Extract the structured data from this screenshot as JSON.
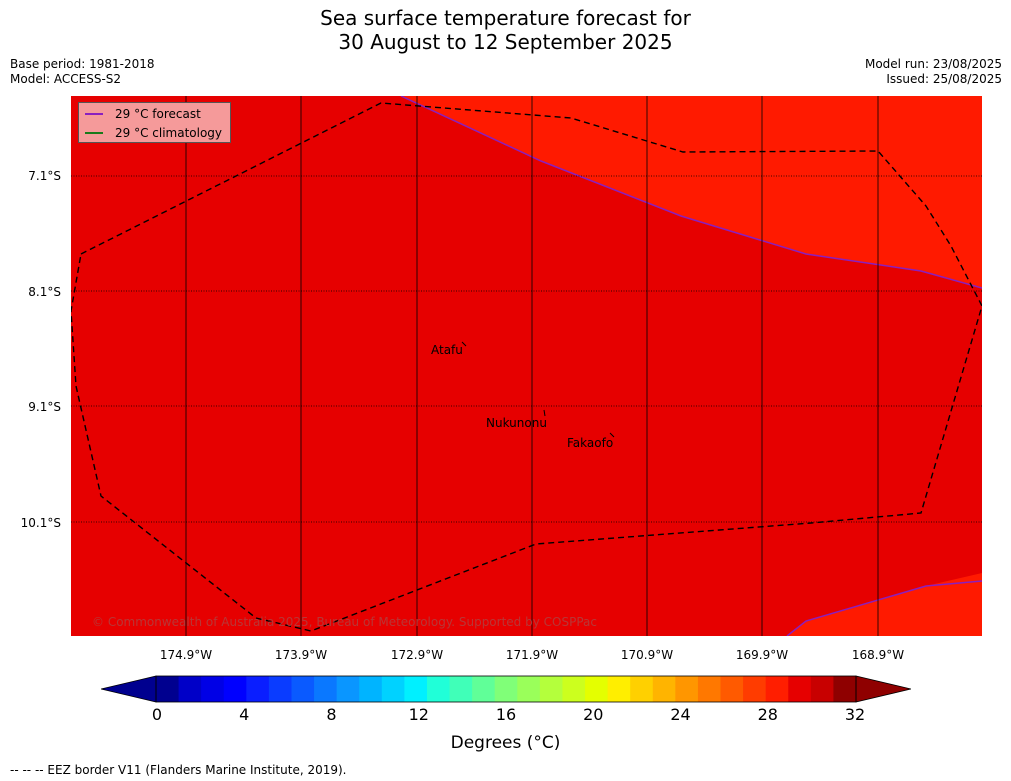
{
  "title": {
    "line1": "Sea surface temperature forecast for",
    "line2": "30 August to 12 September 2025"
  },
  "meta": {
    "base_period": "Base period: 1981-2018",
    "model": "Model: ACCESS-S2",
    "model_run": "Model run: 23/08/2025",
    "issued": "Issued: 25/08/2025"
  },
  "legend": {
    "forecast_label": "29 °C  forecast",
    "forecast_color": "#8a1fbf",
    "climatology_label": "29 °C  climatology",
    "climatology_color": "#1a7a1a"
  },
  "axes": {
    "lat_labels": [
      "7.1°S",
      "8.1°S",
      "9.1°S",
      "10.1°S"
    ],
    "lon_labels": [
      "174.9°W",
      "173.9°W",
      "172.9°W",
      "171.9°W",
      "170.9°W",
      "169.9°W",
      "168.9°W"
    ]
  },
  "places": [
    "Atafu",
    "Nukunonu",
    "Fakaofo"
  ],
  "copyright": "© Commonwealth of Australia 2025, Bureau of Meteorology. Supported by COSPPac",
  "colors": {
    "warm_region": "#ff1a00",
    "main_region": "#e60000",
    "eez_border": "#000000"
  },
  "colorbar": {
    "ticks": [
      "0",
      "4",
      "8",
      "12",
      "16",
      "20",
      "24",
      "28",
      "32"
    ],
    "label": "Degrees (°C)",
    "colors": [
      "#00008f",
      "#0000c8",
      "#0000e6",
      "#0000ff",
      "#0a1eff",
      "#0a3cff",
      "#0a5aff",
      "#0a78ff",
      "#0a96ff",
      "#00b4ff",
      "#00d2ff",
      "#00f0ff",
      "#20ffd8",
      "#40ffb8",
      "#60ff98",
      "#80ff78",
      "#9aff5a",
      "#b4ff3c",
      "#ccff1e",
      "#e4ff00",
      "#ffee00",
      "#ffd000",
      "#ffb400",
      "#ff9600",
      "#ff7800",
      "#ff5a00",
      "#ff3c00",
      "#ff1e00",
      "#e60000",
      "#c80000",
      "#8f0000"
    ]
  },
  "footnote": "--  --  -- EEZ border V11 (Flanders Marine Institute, 2019)."
}
